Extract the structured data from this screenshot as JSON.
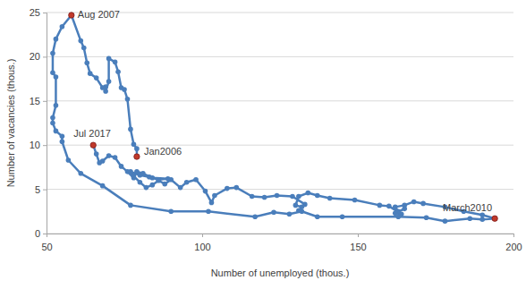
{
  "chart_data": {
    "type": "line",
    "x_label": "Number of unemployed (thous.)",
    "y_label": "Number of vacancies (thous.)",
    "color": "#4a7ebb",
    "marker": "circle",
    "grid": true,
    "xlim": [
      50,
      200
    ],
    "xticks": [
      50,
      100,
      150,
      200
    ],
    "ylim": [
      0,
      25
    ],
    "yticks": [
      0,
      5,
      10,
      15,
      20,
      25
    ],
    "x": [
      79,
      79,
      78,
      77,
      76,
      75,
      74,
      73,
      72,
      70,
      70,
      69,
      69,
      68,
      66,
      64,
      63,
      62,
      61,
      58,
      55,
      53,
      52,
      52,
      53,
      53,
      52,
      52,
      53,
      55,
      55,
      57,
      61,
      68,
      77,
      90,
      102,
      117,
      123,
      128,
      132,
      137,
      145,
      163,
      172,
      178,
      186,
      190,
      194,
      190,
      184,
      178,
      171,
      168,
      165,
      162,
      163,
      165,
      162,
      164,
      160,
      157,
      149,
      141,
      137,
      134,
      131,
      130,
      132,
      131,
      133,
      129,
      124,
      120,
      116,
      111,
      108,
      104,
      103,
      101,
      98,
      95,
      93,
      90,
      88,
      86,
      84,
      82,
      80,
      78,
      77,
      80,
      83,
      86,
      89,
      84,
      81,
      79,
      78,
      76,
      74,
      72,
      70,
      68,
      67,
      66,
      65
    ],
    "values": [
      8.7,
      9.6,
      10.1,
      11.8,
      15.2,
      16.3,
      16.5,
      18.3,
      19.4,
      19.8,
      17.2,
      16.1,
      16.6,
      16.5,
      17.6,
      18.1,
      19.3,
      21.0,
      21.8,
      24.7,
      23.4,
      22.0,
      20.4,
      18.2,
      17.7,
      14.5,
      13.1,
      12.5,
      11.6,
      11.0,
      10.4,
      8.3,
      6.8,
      5.4,
      3.2,
      2.5,
      2.5,
      1.9,
      2.4,
      2.2,
      2.5,
      1.9,
      1.9,
      1.9,
      1.8,
      1.4,
      1.7,
      1.6,
      1.7,
      2.1,
      2.5,
      3.0,
      3.4,
      3.6,
      3.2,
      3.0,
      2.5,
      2.8,
      2.3,
      2.2,
      3.1,
      3.2,
      3.8,
      4.0,
      4.3,
      4.6,
      4.2,
      3.2,
      3.0,
      2.6,
      3.3,
      4.2,
      4.3,
      4.1,
      4.2,
      5.2,
      5.1,
      4.3,
      3.5,
      4.8,
      6.1,
      5.8,
      5.2,
      6.1,
      5.6,
      6.0,
      5.5,
      5.2,
      5.8,
      6.5,
      7.0,
      6.6,
      6.4,
      6.1,
      6.2,
      6.3,
      6.8,
      7.0,
      6.3,
      7.0,
      7.6,
      8.6,
      8.8,
      8.2,
      8.0,
      9.0,
      10.0
    ],
    "annotations": [
      {
        "text": "Aug 2007",
        "x": 58,
        "y": 24.7,
        "color": "#c0392b"
      },
      {
        "text": "Jul 2017",
        "x": 65,
        "y": 10.0,
        "color": "#c0392b"
      },
      {
        "text": "Jan2006",
        "x": 79,
        "y": 8.7,
        "color": "#c0392b"
      },
      {
        "text": "March2010",
        "x": 194,
        "y": 1.7,
        "color": "#c0392b"
      }
    ]
  }
}
